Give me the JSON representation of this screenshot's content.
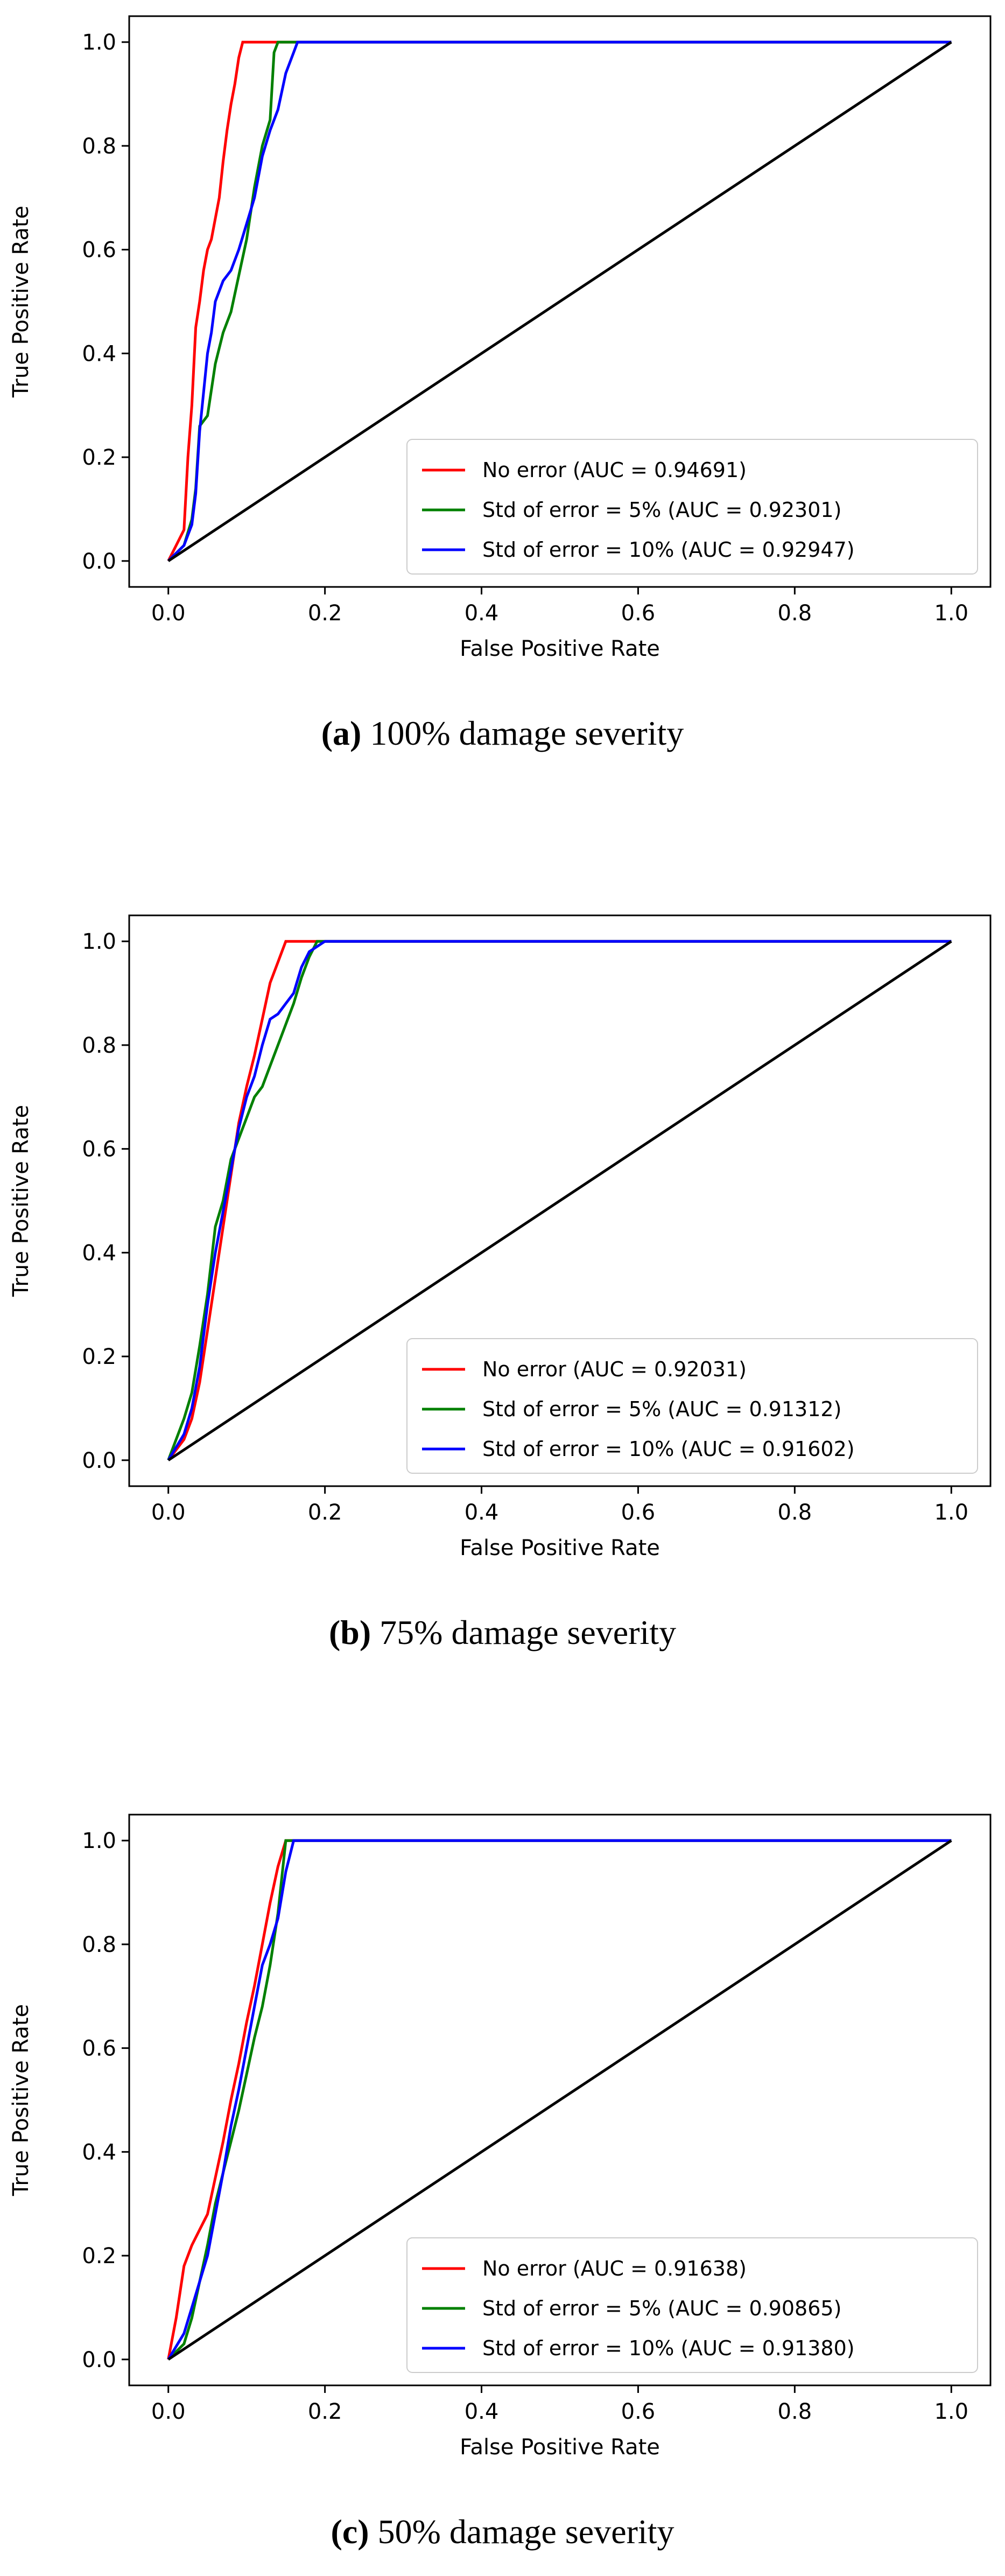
{
  "chart_data": [
    {
      "type": "line",
      "caption_label": "(a)",
      "caption_text": "100% damage severity",
      "xlabel": "False Positive Rate",
      "ylabel": "True Positive Rate",
      "xlim": [
        0.0,
        1.0
      ],
      "ylim": [
        0.0,
        1.0
      ],
      "xticks": [
        "0.0",
        "0.2",
        "0.4",
        "0.6",
        "0.8",
        "1.0"
      ],
      "yticks": [
        "0.0",
        "0.2",
        "0.4",
        "0.6",
        "0.8",
        "1.0"
      ],
      "legend_position": "lower-right",
      "series": [
        {
          "name": "No error (AUC = 0.94691)",
          "color": "#ff0000",
          "x": [
            0,
            0.01,
            0.02,
            0.025,
            0.03,
            0.035,
            0.04,
            0.045,
            0.05,
            0.055,
            0.06,
            0.065,
            0.07,
            0.075,
            0.08,
            0.085,
            0.09,
            0.095,
            0.1,
            1.0
          ],
          "y": [
            0,
            0.03,
            0.06,
            0.2,
            0.3,
            0.45,
            0.5,
            0.56,
            0.6,
            0.62,
            0.66,
            0.7,
            0.77,
            0.83,
            0.88,
            0.92,
            0.97,
            1.0,
            1.0,
            1.0
          ]
        },
        {
          "name": "Std of error = 5% (AUC = 0.92301)",
          "color": "#008000",
          "x": [
            0,
            0.02,
            0.03,
            0.035,
            0.04,
            0.05,
            0.06,
            0.07,
            0.08,
            0.09,
            0.1,
            0.11,
            0.115,
            0.12,
            0.13,
            0.135,
            0.14,
            0.15,
            1.0
          ],
          "y": [
            0,
            0.03,
            0.08,
            0.14,
            0.26,
            0.28,
            0.38,
            0.44,
            0.48,
            0.55,
            0.62,
            0.72,
            0.76,
            0.8,
            0.85,
            0.98,
            1.0,
            1.0,
            1.0
          ]
        },
        {
          "name": "Std of error = 10% (AUC = 0.92947)",
          "color": "#0000ff",
          "x": [
            0,
            0.02,
            0.03,
            0.035,
            0.04,
            0.05,
            0.055,
            0.06,
            0.07,
            0.08,
            0.09,
            0.1,
            0.11,
            0.12,
            0.13,
            0.14,
            0.15,
            0.16,
            0.165,
            1.0
          ],
          "y": [
            0,
            0.03,
            0.07,
            0.13,
            0.25,
            0.4,
            0.44,
            0.5,
            0.54,
            0.56,
            0.6,
            0.65,
            0.7,
            0.78,
            0.83,
            0.87,
            0.94,
            0.98,
            1.0,
            1.0
          ]
        },
        {
          "name": "",
          "color": "#000000",
          "x": [
            0,
            1
          ],
          "y": [
            0,
            1
          ]
        }
      ]
    },
    {
      "type": "line",
      "caption_label": "(b)",
      "caption_text": "75% damage severity",
      "xlabel": "False Positive Rate",
      "ylabel": "True Positive Rate",
      "xlim": [
        0.0,
        1.0
      ],
      "ylim": [
        0.0,
        1.0
      ],
      "xticks": [
        "0.0",
        "0.2",
        "0.4",
        "0.6",
        "0.8",
        "1.0"
      ],
      "yticks": [
        "0.0",
        "0.2",
        "0.4",
        "0.6",
        "0.8",
        "1.0"
      ],
      "legend_position": "lower-right",
      "series": [
        {
          "name": "No error (AUC = 0.92031)",
          "color": "#ff0000",
          "x": [
            0,
            0.02,
            0.03,
            0.04,
            0.05,
            0.06,
            0.07,
            0.08,
            0.09,
            0.1,
            0.11,
            0.12,
            0.13,
            0.14,
            0.15,
            0.16,
            1.0
          ],
          "y": [
            0,
            0.04,
            0.08,
            0.15,
            0.25,
            0.35,
            0.45,
            0.55,
            0.65,
            0.72,
            0.78,
            0.85,
            0.92,
            0.96,
            1.0,
            1.0,
            1.0
          ]
        },
        {
          "name": "Std of error = 5% (AUC = 0.91312)",
          "color": "#008000",
          "x": [
            0,
            0.02,
            0.03,
            0.04,
            0.05,
            0.06,
            0.07,
            0.08,
            0.09,
            0.1,
            0.11,
            0.12,
            0.13,
            0.14,
            0.15,
            0.16,
            0.17,
            0.18,
            0.19,
            1.0
          ],
          "y": [
            0,
            0.08,
            0.13,
            0.22,
            0.32,
            0.45,
            0.5,
            0.58,
            0.62,
            0.66,
            0.7,
            0.72,
            0.76,
            0.8,
            0.84,
            0.88,
            0.93,
            0.97,
            1.0,
            1.0
          ]
        },
        {
          "name": "Std of error = 10% (AUC = 0.91602)",
          "color": "#0000ff",
          "x": [
            0,
            0.02,
            0.03,
            0.04,
            0.05,
            0.06,
            0.07,
            0.08,
            0.09,
            0.1,
            0.11,
            0.12,
            0.13,
            0.14,
            0.15,
            0.16,
            0.17,
            0.18,
            0.19,
            0.2,
            1.0
          ],
          "y": [
            0,
            0.05,
            0.1,
            0.18,
            0.3,
            0.4,
            0.48,
            0.56,
            0.64,
            0.7,
            0.74,
            0.8,
            0.85,
            0.86,
            0.88,
            0.9,
            0.95,
            0.98,
            0.99,
            1.0,
            1.0
          ]
        },
        {
          "name": "",
          "color": "#000000",
          "x": [
            0,
            1
          ],
          "y": [
            0,
            1
          ]
        }
      ]
    },
    {
      "type": "line",
      "caption_label": "(c)",
      "caption_text": "50% damage severity",
      "xlabel": "False Positive Rate",
      "ylabel": "True Positive Rate",
      "xlim": [
        0.0,
        1.0
      ],
      "ylim": [
        0.0,
        1.0
      ],
      "xticks": [
        "0.0",
        "0.2",
        "0.4",
        "0.6",
        "0.8",
        "1.0"
      ],
      "yticks": [
        "0.0",
        "0.2",
        "0.4",
        "0.6",
        "0.8",
        "1.0"
      ],
      "legend_position": "lower-right",
      "series": [
        {
          "name": "No error (AUC = 0.91638)",
          "color": "#ff0000",
          "x": [
            0,
            0.01,
            0.02,
            0.03,
            0.04,
            0.05,
            0.06,
            0.07,
            0.08,
            0.09,
            0.1,
            0.11,
            0.12,
            0.13,
            0.14,
            0.15,
            0.16,
            1.0
          ],
          "y": [
            0,
            0.08,
            0.18,
            0.22,
            0.25,
            0.28,
            0.35,
            0.42,
            0.5,
            0.57,
            0.65,
            0.72,
            0.8,
            0.88,
            0.95,
            1.0,
            1.0,
            1.0
          ]
        },
        {
          "name": "Std of error = 5% (AUC = 0.90865)",
          "color": "#008000",
          "x": [
            0,
            0.02,
            0.03,
            0.04,
            0.05,
            0.06,
            0.07,
            0.08,
            0.09,
            0.1,
            0.11,
            0.12,
            0.13,
            0.14,
            0.15,
            1.0
          ],
          "y": [
            0,
            0.03,
            0.08,
            0.15,
            0.22,
            0.3,
            0.36,
            0.42,
            0.48,
            0.55,
            0.62,
            0.68,
            0.76,
            0.86,
            1.0,
            1.0
          ]
        },
        {
          "name": "Std of error = 10% (AUC = 0.91380)",
          "color": "#0000ff",
          "x": [
            0,
            0.02,
            0.03,
            0.04,
            0.05,
            0.06,
            0.07,
            0.08,
            0.09,
            0.1,
            0.11,
            0.12,
            0.13,
            0.14,
            0.15,
            0.16,
            1.0
          ],
          "y": [
            0,
            0.05,
            0.1,
            0.15,
            0.2,
            0.28,
            0.36,
            0.45,
            0.52,
            0.6,
            0.68,
            0.76,
            0.8,
            0.85,
            0.94,
            1.0,
            1.0
          ]
        },
        {
          "name": "",
          "color": "#000000",
          "x": [
            0,
            1
          ],
          "y": [
            0,
            1
          ]
        }
      ]
    }
  ]
}
